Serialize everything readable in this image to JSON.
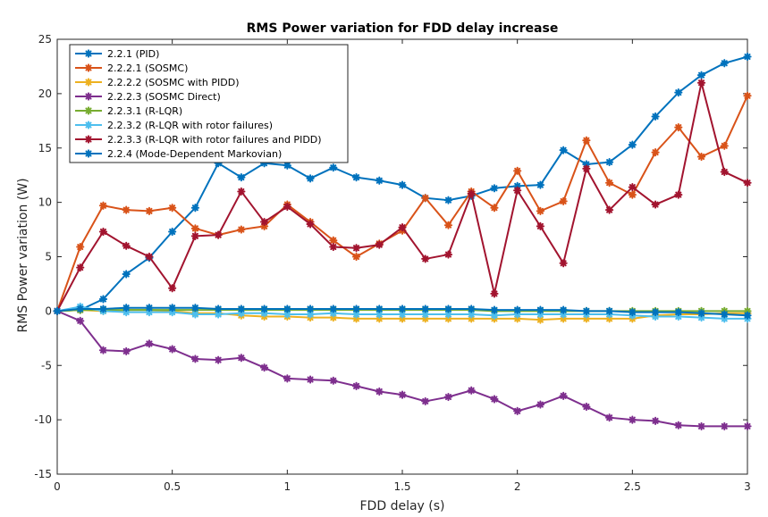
{
  "chart_data": {
    "type": "line",
    "title": "RMS Power variation for FDD delay increase",
    "xlabel": "FDD delay (s)",
    "ylabel": "RMS Power variation (W)",
    "xlim": [
      0,
      3
    ],
    "ylim": [
      -15,
      25
    ],
    "xticks": [
      0,
      0.5,
      1,
      1.5,
      2,
      2.5,
      3
    ],
    "xtick_labels": [
      "0",
      "0.5",
      "1",
      "1.5",
      "2",
      "2.5",
      "3"
    ],
    "yticks": [
      -15,
      -10,
      -5,
      0,
      5,
      10,
      15,
      20,
      25
    ],
    "ytick_labels": [
      "-15",
      "-10",
      "-5",
      "0",
      "5",
      "10",
      "15",
      "20",
      "25"
    ],
    "grid": false,
    "legend_position": "top-left",
    "x": [
      0,
      0.1,
      0.2,
      0.3,
      0.4,
      0.5,
      0.6,
      0.7,
      0.8,
      0.9,
      1.0,
      1.1,
      1.2,
      1.3,
      1.4,
      1.5,
      1.6,
      1.7,
      1.8,
      1.9,
      2.0,
      2.1,
      2.2,
      2.3,
      2.4,
      2.5,
      2.6,
      2.7,
      2.8,
      2.9,
      3.0
    ],
    "series": [
      {
        "name": "2.2.1 (PID)",
        "color": "#0072BD",
        "values": [
          0,
          0.1,
          1.1,
          3.4,
          4.9,
          7.3,
          9.5,
          13.6,
          12.3,
          13.6,
          13.4,
          12.2,
          13.2,
          12.3,
          12.0,
          11.6,
          10.4,
          10.2,
          10.6,
          11.3,
          11.5,
          11.6,
          14.8,
          13.5,
          13.7,
          15.3,
          17.9,
          20.1,
          21.7,
          22.8,
          23.4
        ]
      },
      {
        "name": "2.2.2.1 (SOSMC)",
        "color": "#D95319",
        "values": [
          0,
          5.9,
          9.7,
          9.3,
          9.2,
          9.5,
          7.6,
          7.0,
          7.5,
          7.8,
          9.8,
          8.2,
          6.5,
          5.0,
          6.2,
          7.4,
          10.4,
          7.9,
          11.0,
          9.5,
          12.9,
          9.2,
          10.1,
          15.7,
          11.8,
          10.7,
          14.6,
          16.9,
          14.2,
          15.2,
          19.8
        ]
      },
      {
        "name": "2.2.2.2 (SOSMC with PIDD)",
        "color": "#EDB120",
        "values": [
          0,
          0.1,
          0.0,
          0.1,
          0.1,
          0.0,
          -0.2,
          -0.2,
          -0.4,
          -0.5,
          -0.5,
          -0.6,
          -0.6,
          -0.7,
          -0.7,
          -0.7,
          -0.7,
          -0.7,
          -0.7,
          -0.7,
          -0.7,
          -0.8,
          -0.7,
          -0.7,
          -0.7,
          -0.7,
          -0.4,
          -0.3,
          -0.3,
          -0.2,
          -0.2
        ]
      },
      {
        "name": "2.2.2.3 (SOSMC Direct)",
        "color": "#7E2F8E",
        "values": [
          0,
          -0.9,
          -3.6,
          -3.7,
          -3.0,
          -3.5,
          -4.4,
          -4.5,
          -4.3,
          -5.2,
          -6.2,
          -6.3,
          -6.4,
          -6.9,
          -7.4,
          -7.7,
          -8.3,
          -7.9,
          -7.3,
          -8.1,
          -9.2,
          -8.6,
          -7.8,
          -8.8,
          -9.8,
          -10.0,
          -10.1,
          -10.5,
          -10.6,
          -10.6,
          -10.6
        ]
      },
      {
        "name": "2.2.3.1 (R-LQR)",
        "color": "#77AC30",
        "values": [
          0,
          0.1,
          0.1,
          0.1,
          0.1,
          0.1,
          0.1,
          0.1,
          0.1,
          0.1,
          0.1,
          0.1,
          0.1,
          0.1,
          0.1,
          0.1,
          0.1,
          0.1,
          0.1,
          0.0,
          0.0,
          0.0,
          0.0,
          0.0,
          0.0,
          0.0,
          0.0,
          0.0,
          0.0,
          0.0,
          0.0
        ]
      },
      {
        "name": "2.2.3.2 (R-LQR with rotor failures)",
        "color": "#4DBEEE",
        "values": [
          0,
          0.4,
          0.0,
          -0.1,
          -0.1,
          -0.1,
          -0.3,
          -0.3,
          -0.2,
          -0.2,
          -0.3,
          -0.3,
          -0.2,
          -0.3,
          -0.3,
          -0.3,
          -0.3,
          -0.3,
          -0.3,
          -0.4,
          -0.3,
          -0.3,
          -0.3,
          -0.3,
          -0.3,
          -0.4,
          -0.5,
          -0.5,
          -0.6,
          -0.7,
          -0.7
        ]
      },
      {
        "name": "2.2.3.3 (R-LQR with rotor failures and PIDD)",
        "color": "#A2142F",
        "values": [
          0,
          4.0,
          7.3,
          6.0,
          5.0,
          2.1,
          6.9,
          7.0,
          11.0,
          8.2,
          9.6,
          8.0,
          5.9,
          5.8,
          6.1,
          7.7,
          4.8,
          5.2,
          10.8,
          1.6,
          11.1,
          7.8,
          4.4,
          13.1,
          9.3,
          11.4,
          9.8,
          10.7,
          21.0,
          12.8,
          11.8
        ]
      },
      {
        "name": "2.2.4 (Mode-Dependent Markovian)",
        "color": "#0072BD",
        "values": [
          0,
          0.2,
          0.2,
          0.3,
          0.3,
          0.3,
          0.3,
          0.2,
          0.2,
          0.2,
          0.2,
          0.2,
          0.2,
          0.2,
          0.2,
          0.2,
          0.2,
          0.2,
          0.2,
          0.1,
          0.1,
          0.1,
          0.1,
          0.0,
          0.0,
          -0.1,
          -0.1,
          -0.1,
          -0.2,
          -0.3,
          -0.4
        ]
      }
    ]
  }
}
